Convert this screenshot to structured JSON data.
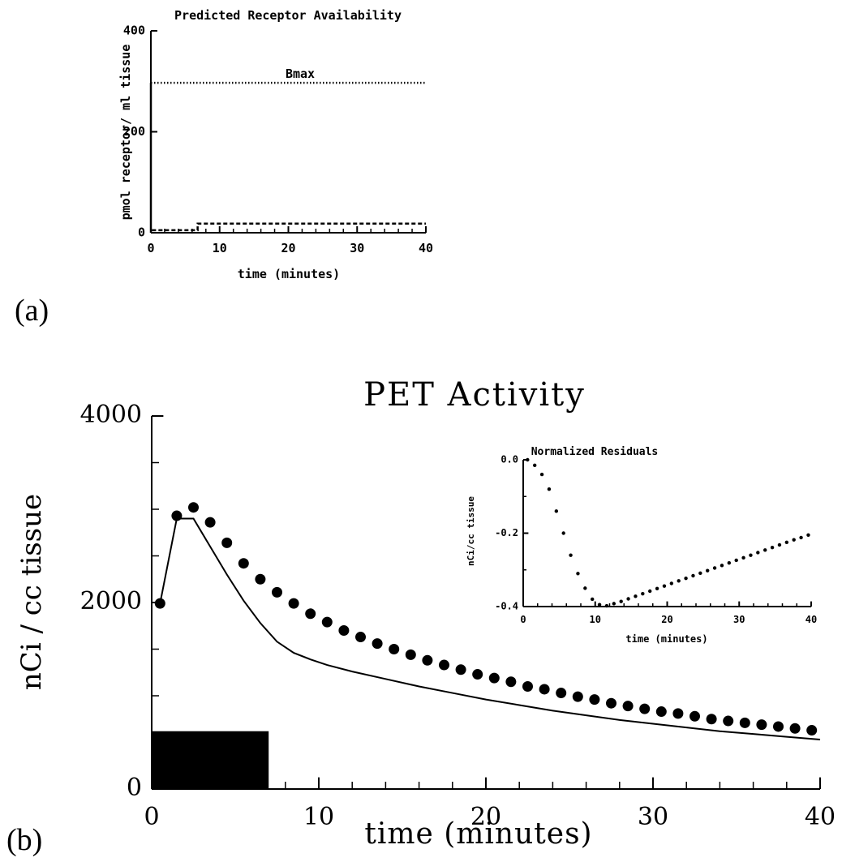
{
  "panel_labels": {
    "a": "(a)",
    "b": "(b)"
  },
  "chart_data": [
    {
      "id": "a",
      "type": "line",
      "title": "Predicted Receptor Availability",
      "xlabel": "time (minutes)",
      "ylabel": "pmol receptor/ ml tissue",
      "xlim": [
        0,
        40
      ],
      "ylim": [
        0,
        400
      ],
      "xticks": [
        0,
        10,
        20,
        30,
        40
      ],
      "yticks": [
        0,
        200,
        400
      ],
      "annotation": "Bmax",
      "series": [
        {
          "style": "dotted",
          "points": [
            [
              0,
              297
            ],
            [
              40,
              297
            ]
          ]
        },
        {
          "style": "dashed",
          "points": [
            [
              0,
              0
            ],
            [
              0,
              297
            ],
            [
              0,
              5
            ],
            [
              6.8,
              5
            ],
            [
              6.8,
              18
            ],
            [
              40,
              18
            ]
          ]
        }
      ]
    },
    {
      "id": "b",
      "type": "line",
      "title": "PET Activity",
      "xlabel": "time (minutes)",
      "ylabel": "nCi / cc tissue",
      "xlim": [
        0,
        40
      ],
      "ylim": [
        0,
        4000
      ],
      "xticks": [
        0,
        10,
        20,
        30,
        40
      ],
      "yticks": [
        0,
        2000,
        4000
      ],
      "infusion_bar": {
        "x": [
          0,
          7
        ],
        "y": 620
      },
      "series": [
        {
          "style": "markers",
          "points": [
            [
              0.5,
              1990
            ],
            [
              1.5,
              2930
            ],
            [
              2.5,
              3020
            ],
            [
              3.5,
              2860
            ],
            [
              4.5,
              2640
            ],
            [
              5.5,
              2420
            ],
            [
              6.5,
              2250
            ],
            [
              7.5,
              2110
            ],
            [
              8.5,
              1990
            ],
            [
              9.5,
              1880
            ],
            [
              10.5,
              1790
            ],
            [
              11.5,
              1700
            ],
            [
              12.5,
              1630
            ],
            [
              13.5,
              1560
            ],
            [
              14.5,
              1500
            ],
            [
              15.5,
              1440
            ],
            [
              16.5,
              1380
            ],
            [
              17.5,
              1330
            ],
            [
              18.5,
              1280
            ],
            [
              19.5,
              1230
            ],
            [
              20.5,
              1190
            ],
            [
              21.5,
              1150
            ],
            [
              22.5,
              1100
            ],
            [
              23.5,
              1070
            ],
            [
              24.5,
              1030
            ],
            [
              25.5,
              990
            ],
            [
              26.5,
              960
            ],
            [
              27.5,
              920
            ],
            [
              28.5,
              890
            ],
            [
              29.5,
              860
            ],
            [
              30.5,
              830
            ],
            [
              31.5,
              810
            ],
            [
              32.5,
              780
            ],
            [
              33.5,
              750
            ],
            [
              34.5,
              730
            ],
            [
              35.5,
              710
            ],
            [
              36.5,
              690
            ],
            [
              37.5,
              670
            ],
            [
              38.5,
              650
            ],
            [
              39.5,
              630
            ]
          ]
        },
        {
          "style": "solid",
          "points": [
            [
              0.5,
              1990
            ],
            [
              1.5,
              2900
            ],
            [
              2.5,
              2900
            ],
            [
              3.5,
              2600
            ],
            [
              4.5,
              2300
            ],
            [
              5.5,
              2020
            ],
            [
              6.5,
              1780
            ],
            [
              7.5,
              1580
            ],
            [
              8.5,
              1460
            ],
            [
              9.5,
              1390
            ],
            [
              10.5,
              1330
            ],
            [
              12,
              1260
            ],
            [
              14,
              1180
            ],
            [
              16,
              1100
            ],
            [
              18,
              1030
            ],
            [
              20,
              960
            ],
            [
              22,
              900
            ],
            [
              24,
              840
            ],
            [
              26,
              790
            ],
            [
              28,
              740
            ],
            [
              30,
              700
            ],
            [
              32,
              660
            ],
            [
              34,
              620
            ],
            [
              36,
              590
            ],
            [
              38,
              560
            ],
            [
              40,
              530
            ]
          ]
        }
      ]
    },
    {
      "id": "b-inset",
      "type": "scatter",
      "title": "Normalized Residuals",
      "xlabel": "time (minutes)",
      "ylabel": "nCi/cc tissue",
      "xlim": [
        0,
        40
      ],
      "ylim": [
        -0.4,
        0.0
      ],
      "xticks": [
        0,
        10,
        20,
        30,
        40
      ],
      "yticks": [
        0.0,
        -0.2,
        -0.4
      ],
      "series": [
        {
          "style": "dots",
          "points": [
            [
              0.6,
              0.0
            ],
            [
              1.6,
              -0.015
            ],
            [
              2.6,
              -0.04
            ],
            [
              3.6,
              -0.08
            ],
            [
              4.6,
              -0.14
            ],
            [
              5.6,
              -0.2
            ],
            [
              6.6,
              -0.26
            ],
            [
              7.6,
              -0.31
            ],
            [
              8.6,
              -0.35
            ],
            [
              9.6,
              -0.38
            ],
            [
              10.6,
              -0.395
            ],
            [
              11.6,
              -0.398
            ],
            [
              12.6,
              -0.392
            ],
            [
              13.6,
              -0.386
            ],
            [
              14.6,
              -0.379
            ],
            [
              15.6,
              -0.372
            ],
            [
              16.6,
              -0.365
            ],
            [
              17.6,
              -0.358
            ],
            [
              18.6,
              -0.351
            ],
            [
              19.6,
              -0.344
            ],
            [
              20.6,
              -0.337
            ],
            [
              21.6,
              -0.33
            ],
            [
              22.6,
              -0.323
            ],
            [
              23.6,
              -0.316
            ],
            [
              24.6,
              -0.309
            ],
            [
              25.6,
              -0.302
            ],
            [
              26.6,
              -0.295
            ],
            [
              27.6,
              -0.288
            ],
            [
              28.6,
              -0.281
            ],
            [
              29.6,
              -0.274
            ],
            [
              30.6,
              -0.267
            ],
            [
              31.6,
              -0.26
            ],
            [
              32.6,
              -0.253
            ],
            [
              33.6,
              -0.246
            ],
            [
              34.6,
              -0.239
            ],
            [
              35.6,
              -0.232
            ],
            [
              36.6,
              -0.225
            ],
            [
              37.6,
              -0.218
            ],
            [
              38.6,
              -0.212
            ],
            [
              39.6,
              -0.205
            ]
          ]
        }
      ]
    }
  ]
}
